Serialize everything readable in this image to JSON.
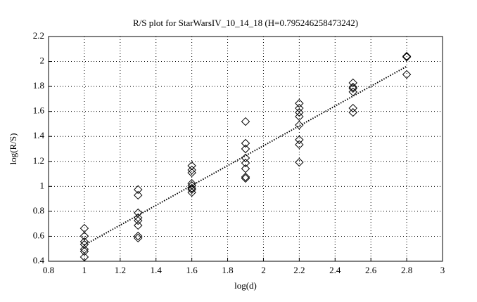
{
  "chart_data": {
    "type": "scatter",
    "title": "R/S plot for StarWarsIV_10_14_18 (H=0.795246258473242)",
    "x_label": "log(d)",
    "y_label": "log(R/S)",
    "x": [
      1,
      1,
      1,
      1,
      1,
      1,
      1,
      1.3,
      1.3,
      1.3,
      1.3,
      1.3,
      1.3,
      1.3,
      1.3,
      1.6,
      1.6,
      1.6,
      1.6,
      1.6,
      1.6,
      1.6,
      1.6,
      1.9,
      1.9,
      1.9,
      1.9,
      1.9,
      1.9,
      1.9,
      1.9,
      2.2,
      2.2,
      2.2,
      2.2,
      2.2,
      2.2,
      2.2,
      2.2,
      2.5,
      2.5,
      2.5,
      2.5,
      2.5,
      2.5,
      2.8,
      2.8,
      2.8
    ],
    "values": [
      0.664,
      0.602,
      0.557,
      0.535,
      0.496,
      0.479,
      0.434,
      0.974,
      0.929,
      0.788,
      0.749,
      0.726,
      0.687,
      0.602,
      0.586,
      1.165,
      1.131,
      1.109,
      1.024,
      1.007,
      0.985,
      0.974,
      0.951,
      1.519,
      1.345,
      1.3,
      1.227,
      1.187,
      1.142,
      1.075,
      1.064,
      1.665,
      1.626,
      1.592,
      1.559,
      1.491,
      1.373,
      1.334,
      1.193,
      1.829,
      1.795,
      1.784,
      1.756,
      1.626,
      1.592,
      2.042,
      2.036,
      1.896
    ],
    "color": "#000000",
    "fit": {
      "x": [
        1,
        2.8
      ],
      "values": [
        0.53,
        1.961
      ]
    },
    "xlim": [
      0.8,
      3
    ],
    "xticks": [
      0.8,
      1,
      1.2,
      1.4,
      1.6,
      1.8,
      2,
      2.2,
      2.4,
      2.6,
      2.8,
      3
    ],
    "ylim": [
      0.4,
      2.2
    ],
    "yticks": [
      0.4,
      0.6,
      0.8,
      1,
      1.2,
      1.4,
      1.6,
      1.8,
      2,
      2.2
    ],
    "grid": true
  }
}
